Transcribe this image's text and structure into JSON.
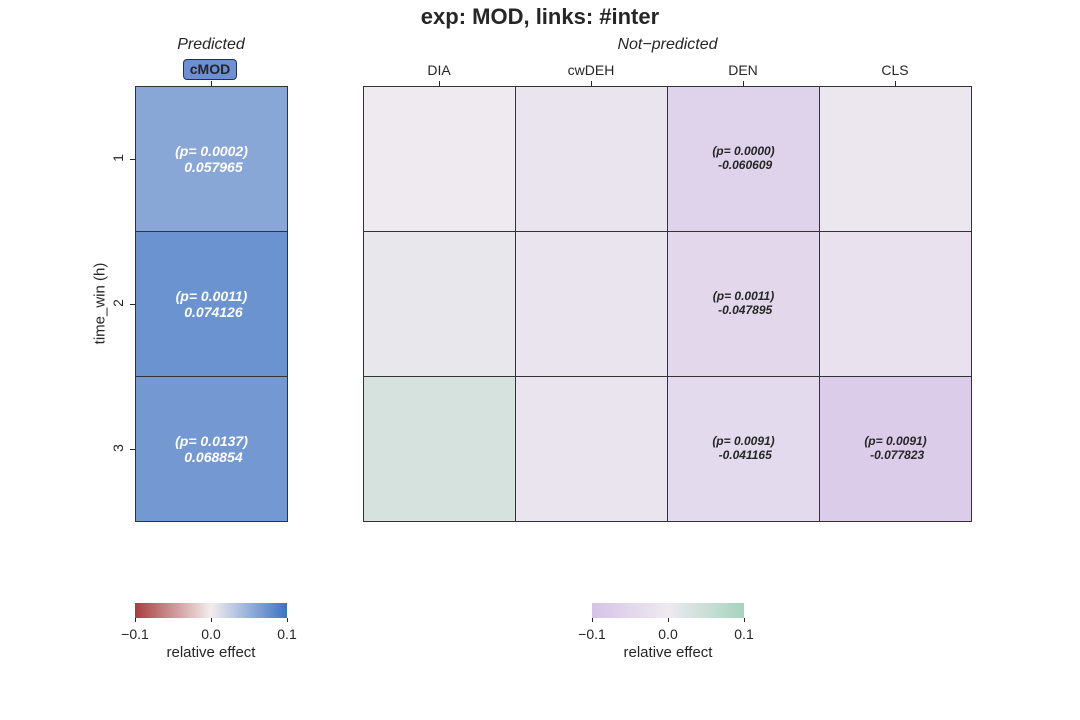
{
  "title": "exp: MOD, links: #inter",
  "panels": {
    "predicted_title": "Predicted",
    "not_predicted_title": "Not−predicted"
  },
  "ylabel": "time_win (h)",
  "colors": {
    "predicted_cmap": [
      "#a83d3f",
      "#f2eded",
      "#3b73c6"
    ],
    "not_predicted_cmap": [
      "#d6c3e8",
      "#eeeaf0",
      "#a7d3bd"
    ],
    "badge": "#6d8fd4"
  },
  "chart_data": [
    {
      "type": "heatmap",
      "name": "Predicted",
      "columns": [
        "cMOD"
      ],
      "rows": [
        "1",
        "2",
        "3"
      ],
      "values": [
        [
          0.057965
        ],
        [
          0.074126
        ],
        [
          0.068854
        ]
      ],
      "annotations": [
        [
          "(p= 0.0002)\n0.057965"
        ],
        [
          "(p= 0.0011)\n0.074126"
        ],
        [
          "(p= 0.0137)\n0.068854"
        ]
      ],
      "vmin": -0.1,
      "vmax": 0.1,
      "colorbar": {
        "label": "relative effect",
        "ticks": [
          "−0.1",
          "0.0",
          "0.1"
        ]
      }
    },
    {
      "type": "heatmap",
      "name": "Not−predicted",
      "columns": [
        "DIA",
        "cwDEH",
        "DEN",
        "CLS"
      ],
      "rows": [
        "1",
        "2",
        "3"
      ],
      "values": [
        [
          0.0,
          -0.015,
          -0.060609,
          -0.008
        ],
        [
          0.008,
          -0.015,
          -0.047895,
          -0.02
        ],
        [
          0.035,
          -0.015,
          -0.041165,
          -0.077823
        ]
      ],
      "annotations": [
        [
          "",
          "",
          "(p= 0.0000)\n-0.060609",
          ""
        ],
        [
          "",
          "",
          "(p= 0.0011)\n-0.047895",
          ""
        ],
        [
          "",
          "",
          "(p= 0.0091)\n-0.041165",
          "(p= 0.0091)\n-0.077823"
        ]
      ],
      "vmin": -0.1,
      "vmax": 0.1,
      "colorbar": {
        "label": "relative effect",
        "ticks": [
          "−0.1",
          "0.0",
          "0.1"
        ]
      }
    }
  ]
}
